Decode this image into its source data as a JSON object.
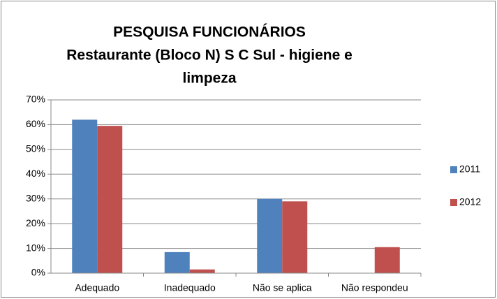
{
  "chart_data": {
    "type": "bar",
    "title": [
      "PESQUISA FUNCIONÁRIOS",
      "Restaurante (Bloco N) S C Sul - higiene e",
      "limpeza"
    ],
    "categories": [
      "Adequado",
      "Inadequado",
      "Não se aplica",
      "Não respondeu"
    ],
    "series": [
      {
        "name": "2011",
        "color": "#4f81bd",
        "values": [
          62,
          8.5,
          30,
          0
        ]
      },
      {
        "name": "2012",
        "color": "#c0504d",
        "values": [
          59.5,
          1.5,
          29,
          10.5
        ]
      }
    ],
    "ylim": [
      0,
      70
    ],
    "yticks": [
      {
        "value": 0,
        "label": "0%"
      },
      {
        "value": 10,
        "label": "10%"
      },
      {
        "value": 20,
        "label": "20%"
      },
      {
        "value": 30,
        "label": "30%"
      },
      {
        "value": 40,
        "label": "40%"
      },
      {
        "value": 50,
        "label": "50%"
      },
      {
        "value": 60,
        "label": "60%"
      },
      {
        "value": 70,
        "label": "70%"
      }
    ],
    "grid": true,
    "legend": "right"
  }
}
